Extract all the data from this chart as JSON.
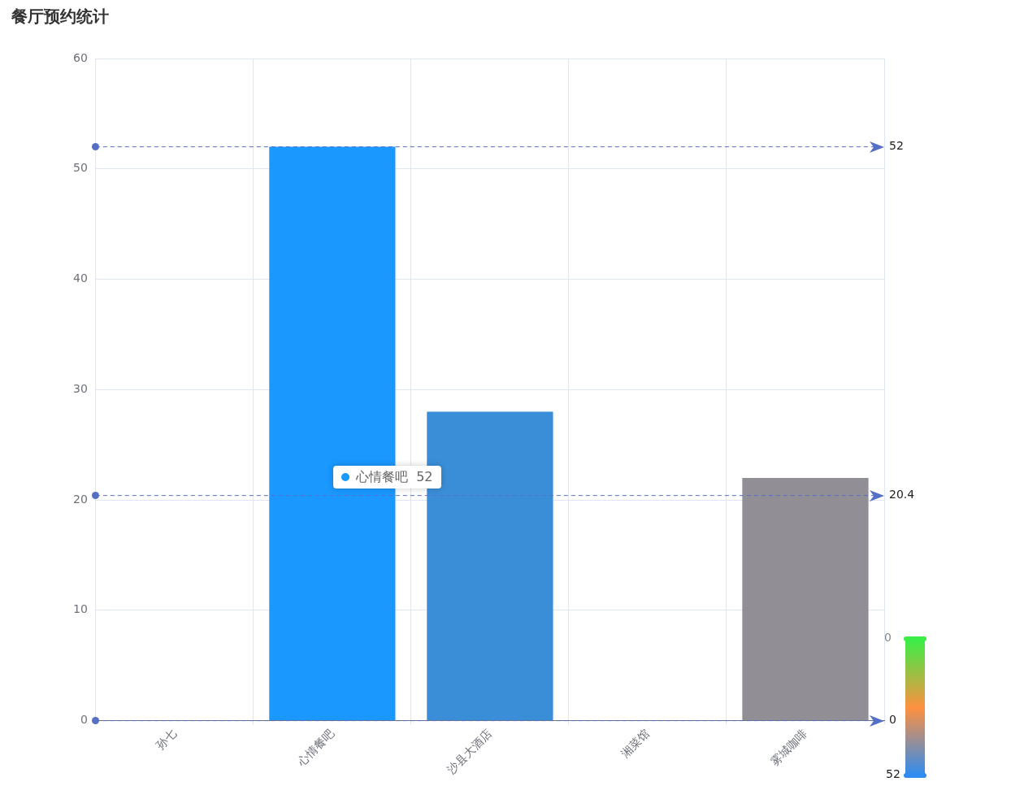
{
  "chart_data": {
    "type": "bar",
    "title": "餐厅预约统计",
    "categories": [
      "孙七",
      "心情餐吧",
      "沙县大酒店",
      "湘菜馆",
      "雾城咖啡"
    ],
    "values": [
      0,
      52,
      28,
      0,
      22
    ],
    "colors": [
      "#1a98fe",
      "#1a98fe",
      "#3a8ed8",
      "#3a8ed8",
      "#918e96"
    ],
    "ylim": [
      0,
      60
    ],
    "yticks": [
      0,
      10,
      20,
      30,
      40,
      50,
      60
    ],
    "grid": true,
    "ref_lines": [
      {
        "axis": "y",
        "value": 52,
        "label": "52",
        "color": "#5470c6",
        "line_style": "dashed"
      },
      {
        "axis": "y",
        "value": 20.4,
        "label": "20.4",
        "color": "#5470c6",
        "line_style": "dashed"
      },
      {
        "axis": "y",
        "value": 0,
        "label": "0",
        "color": "#5470c6",
        "line_style": "dashed"
      }
    ],
    "annotations": [
      "心情餐吧  52",
      "0",
      "52"
    ]
  }
}
